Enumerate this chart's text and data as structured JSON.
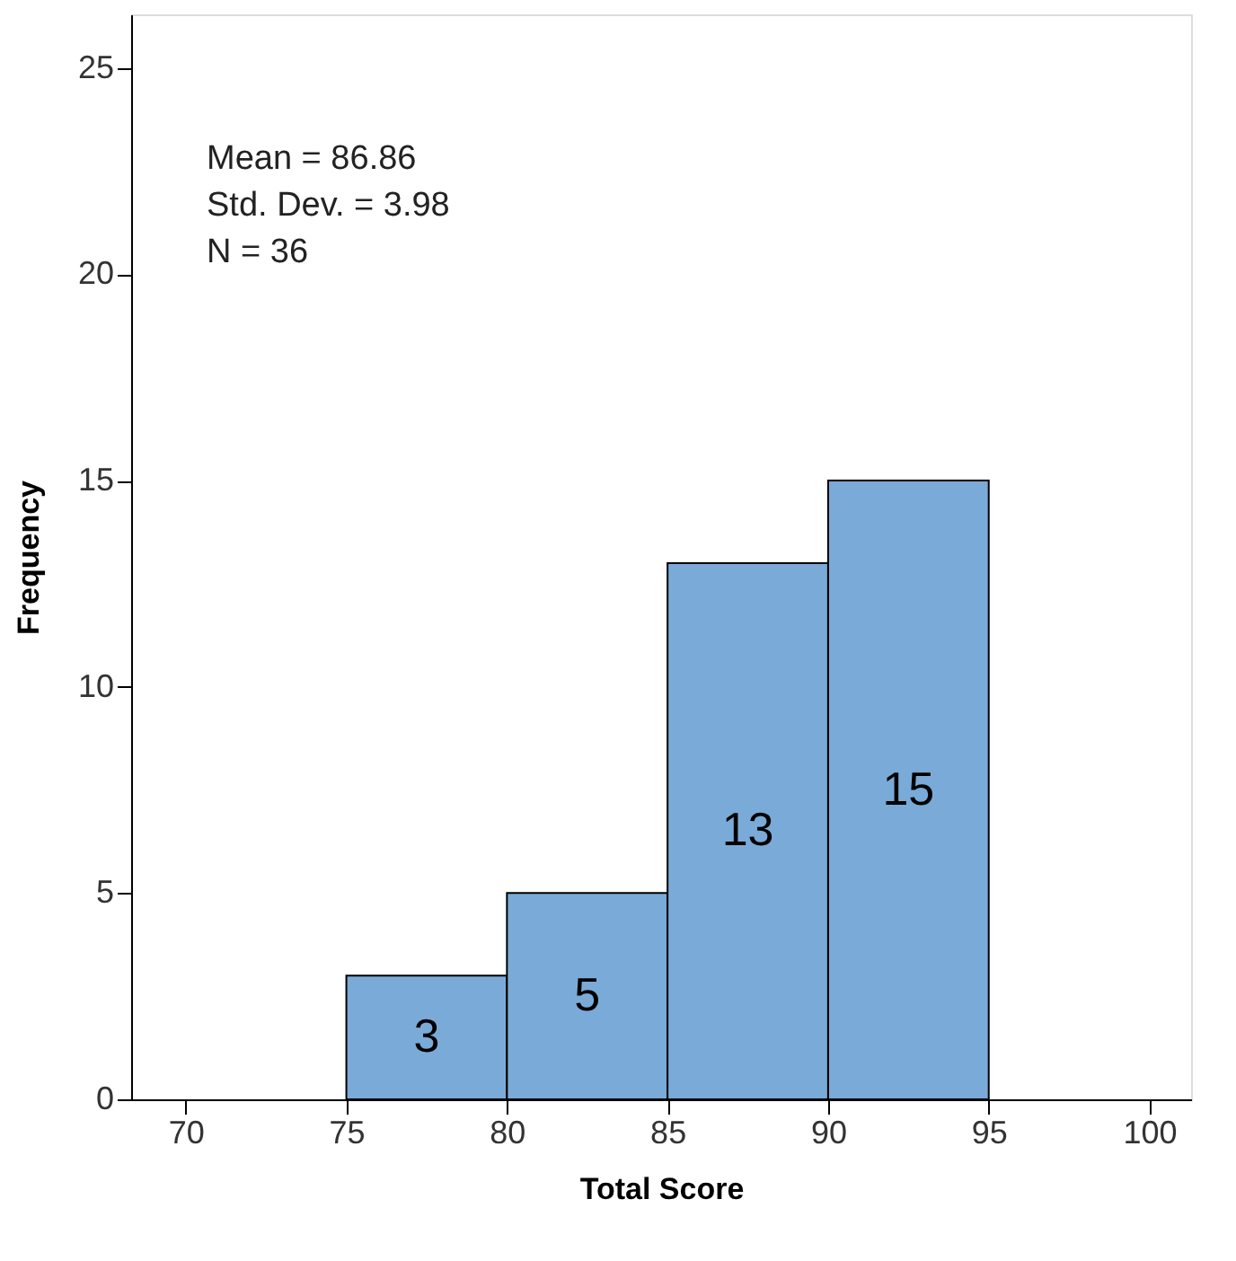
{
  "chart_data": {
    "type": "histogram",
    "xlabel": "Total Score",
    "ylabel": "Frequency",
    "bins": [
      75,
      80,
      85,
      90,
      95
    ],
    "values": [
      3,
      5,
      13,
      15
    ],
    "color": "#7aaad7",
    "data_labels": true,
    "xlim": [
      68.3,
      101.3
    ],
    "xticks": [
      70,
      75,
      80,
      85,
      90,
      95,
      100
    ],
    "ylim": [
      0,
      26.3
    ],
    "yticks": [
      0,
      5,
      10,
      15,
      20,
      25
    ],
    "grid": false,
    "annotations": [
      "Mean = 86.86",
      "Std. Dev. = 3.98",
      "N = 36"
    ]
  }
}
